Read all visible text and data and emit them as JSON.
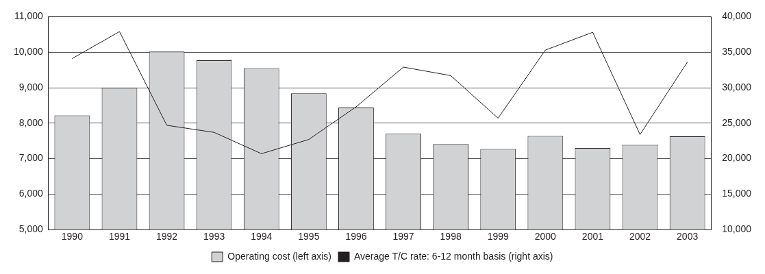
{
  "chart_data": {
    "type": "bar",
    "categories": [
      "1990",
      "1991",
      "1992",
      "1993",
      "1994",
      "1995",
      "1996",
      "1997",
      "1998",
      "1999",
      "2000",
      "2001",
      "2002",
      "2003"
    ],
    "series": [
      {
        "name": "Operating cost (left axis)",
        "color": "#d1d2d4",
        "values": [
          8220,
          9000,
          10020,
          9770,
          9550,
          8840,
          8440,
          7700,
          7410,
          7270,
          7640,
          7300,
          7390,
          7630
        ]
      },
      {
        "name": "Average T/C rate: 6-12 month basis (right axis)",
        "type": "line",
        "axis": "y2",
        "color": "#231f20",
        "values": [
          34100,
          37900,
          24700,
          23700,
          20700,
          22700,
          27300,
          32900,
          31700,
          25700,
          35300,
          37800,
          23400,
          33600
        ]
      }
    ],
    "ylim": [
      5000,
      11000
    ],
    "yticks": [
      {
        "value": 5000,
        "label": "5,000"
      },
      {
        "value": 6000,
        "label": "6,000"
      },
      {
        "value": 7000,
        "label": "7,000"
      },
      {
        "value": 8000,
        "label": "8,000"
      },
      {
        "value": 9000,
        "label": "9,000"
      },
      {
        "value": 10000,
        "label": "10,000"
      },
      {
        "value": 11000,
        "label": "11,000"
      }
    ],
    "y2lim": [
      10000,
      40000
    ],
    "y2ticks": [
      {
        "value": 10000,
        "label": "10,000"
      },
      {
        "value": 15000,
        "label": "15,000"
      },
      {
        "value": 20000,
        "label": "20,000"
      },
      {
        "value": 25000,
        "label": "25,000"
      },
      {
        "value": 30000,
        "label": "30,000"
      },
      {
        "value": 35000,
        "label": "35,000"
      },
      {
        "value": 40000,
        "label": "40,000"
      }
    ],
    "grid": "y",
    "legend": "bottom",
    "marker": "none",
    "line_style": "solid"
  }
}
